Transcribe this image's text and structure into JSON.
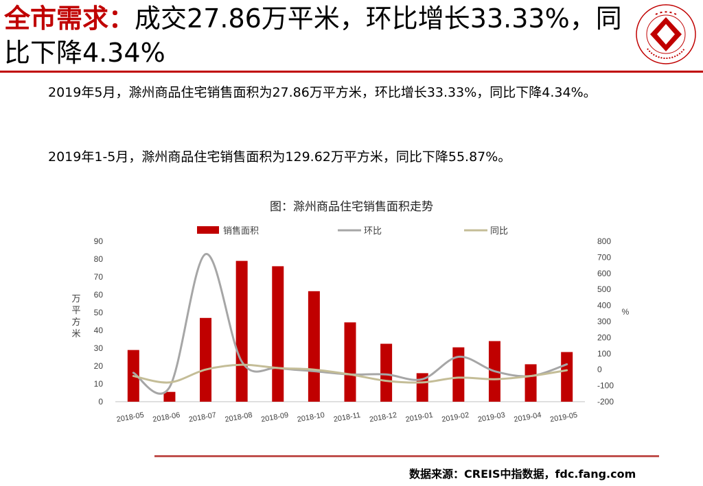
{
  "header": {
    "title_highlight": "全市需求：",
    "title_rest": "成交27.86万平米，环比增长33.33%，同比下降4.34%"
  },
  "paragraphs": [
    "2019年5月，滁州商品住宅销售面积为27.86万平方米，环比增长33.33%，同比下降4.34%。",
    "2019年1-5月，滁州商品住宅销售面积为129.62万平方米，同比下降55.87%。"
  ],
  "chart_caption": "图：滁州商品住宅销售面积走势",
  "chart_data": {
    "type": "bar",
    "categories": [
      "2018-05",
      "2018-06",
      "2018-07",
      "2018-08",
      "2018-09",
      "2018-10",
      "2018-11",
      "2018-12",
      "2019-01",
      "2019-02",
      "2019-03",
      "2019-04",
      "2019-05"
    ],
    "series": [
      {
        "name": "销售面积",
        "type": "bar",
        "axis": "left",
        "color": "#c00000",
        "values": [
          29,
          5.5,
          47,
          79,
          76,
          62,
          44.5,
          32.5,
          16,
          30.5,
          34,
          21,
          27.86
        ]
      },
      {
        "name": "环比",
        "type": "line",
        "axis": "right",
        "color": "#a6a6a6",
        "values": [
          -20,
          -110,
          720,
          50,
          10,
          -10,
          -30,
          -30,
          -60,
          80,
          -10,
          -40,
          33
        ]
      },
      {
        "name": "同比",
        "type": "line",
        "axis": "right",
        "color": "#c4bd97",
        "values": [
          -40,
          -80,
          0,
          30,
          10,
          0,
          -30,
          -70,
          -80,
          -50,
          -60,
          -40,
          -4
        ]
      }
    ],
    "ylabel_left": "万平方米",
    "ylabel_right": "%",
    "ylim_left": [
      0,
      90
    ],
    "yticks_left": [
      "0",
      "10",
      "20",
      "30",
      "40",
      "50",
      "60",
      "70",
      "80",
      "90"
    ],
    "ylim_right": [
      -200,
      800
    ],
    "yticks_right": [
      "-200",
      "-100",
      "0",
      "100",
      "200",
      "300",
      "400",
      "500",
      "600",
      "700",
      "800"
    ],
    "legend_position": "top",
    "grid": false
  },
  "footer": {
    "source": "数据来源：CREIS中指数据，fdc.fang.com"
  },
  "logo": {
    "center_text": "中指",
    "ring_text": "中国指数研究院",
    "subtitle": "CHINA INDEX ACADEMY"
  }
}
